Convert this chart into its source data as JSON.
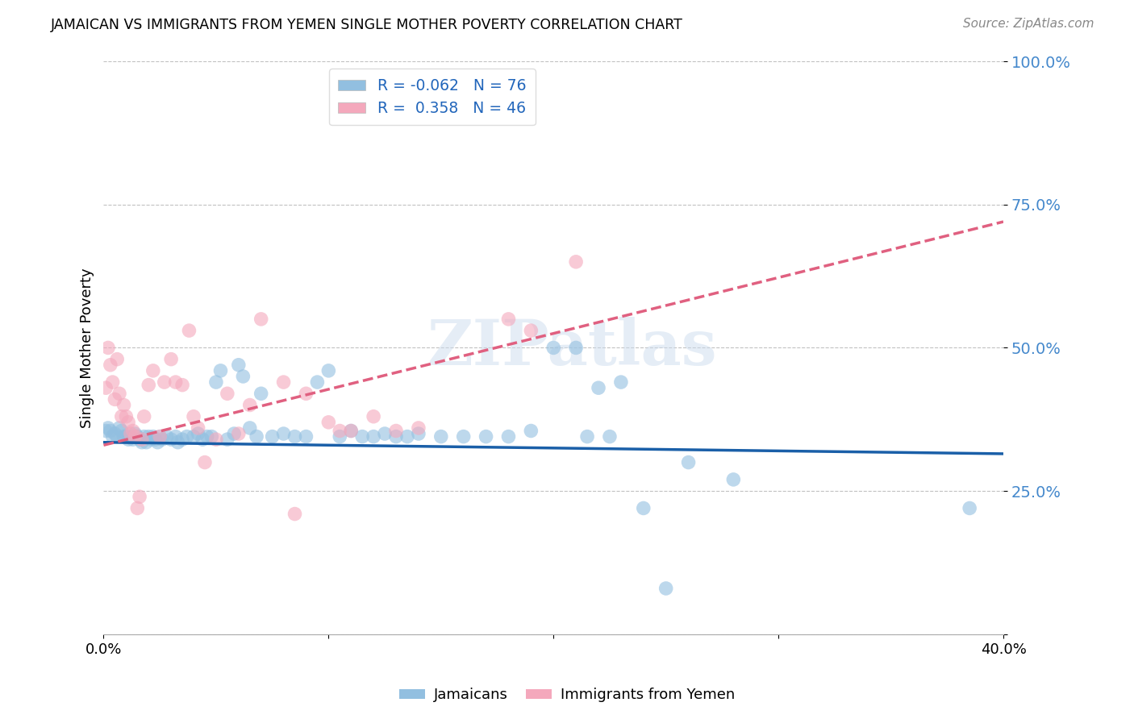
{
  "title": "JAMAICAN VS IMMIGRANTS FROM YEMEN SINGLE MOTHER POVERTY CORRELATION CHART",
  "source": "Source: ZipAtlas.com",
  "ylabel": "Single Mother Poverty",
  "yticks": [
    0.0,
    0.25,
    0.5,
    0.75,
    1.0
  ],
  "ytick_labels": [
    "",
    "25.0%",
    "50.0%",
    "75.0%",
    "100.0%"
  ],
  "xmin": 0.0,
  "xmax": 0.4,
  "ymin": 0.0,
  "ymax": 1.0,
  "watermark": "ZIPatlas",
  "jamaican_color": "#92bfe0",
  "yemen_color": "#f4a8bc",
  "jamaican_line_color": "#1a5fa8",
  "yemen_line_color": "#e06080",
  "jamaican_r": -0.062,
  "yemen_r": 0.358,
  "jamaican_n": 76,
  "yemen_n": 46,
  "jamaican_line": [
    0.0,
    0.335,
    0.4,
    0.315
  ],
  "yemen_line": [
    0.0,
    0.33,
    0.4,
    0.72
  ],
  "jamaican_points": [
    [
      0.001,
      0.355
    ],
    [
      0.002,
      0.36
    ],
    [
      0.003,
      0.355
    ],
    [
      0.004,
      0.345
    ],
    [
      0.005,
      0.35
    ],
    [
      0.006,
      0.345
    ],
    [
      0.007,
      0.36
    ],
    [
      0.008,
      0.355
    ],
    [
      0.009,
      0.345
    ],
    [
      0.01,
      0.345
    ],
    [
      0.011,
      0.34
    ],
    [
      0.012,
      0.345
    ],
    [
      0.013,
      0.34
    ],
    [
      0.014,
      0.35
    ],
    [
      0.015,
      0.345
    ],
    [
      0.016,
      0.34
    ],
    [
      0.017,
      0.335
    ],
    [
      0.018,
      0.345
    ],
    [
      0.019,
      0.335
    ],
    [
      0.02,
      0.345
    ],
    [
      0.021,
      0.34
    ],
    [
      0.022,
      0.345
    ],
    [
      0.023,
      0.34
    ],
    [
      0.024,
      0.335
    ],
    [
      0.025,
      0.345
    ],
    [
      0.026,
      0.34
    ],
    [
      0.028,
      0.345
    ],
    [
      0.03,
      0.34
    ],
    [
      0.032,
      0.345
    ],
    [
      0.033,
      0.335
    ],
    [
      0.035,
      0.34
    ],
    [
      0.037,
      0.345
    ],
    [
      0.04,
      0.345
    ],
    [
      0.042,
      0.35
    ],
    [
      0.044,
      0.34
    ],
    [
      0.046,
      0.345
    ],
    [
      0.048,
      0.345
    ],
    [
      0.05,
      0.44
    ],
    [
      0.052,
      0.46
    ],
    [
      0.055,
      0.34
    ],
    [
      0.058,
      0.35
    ],
    [
      0.06,
      0.47
    ],
    [
      0.062,
      0.45
    ],
    [
      0.065,
      0.36
    ],
    [
      0.068,
      0.345
    ],
    [
      0.07,
      0.42
    ],
    [
      0.075,
      0.345
    ],
    [
      0.08,
      0.35
    ],
    [
      0.085,
      0.345
    ],
    [
      0.09,
      0.345
    ],
    [
      0.095,
      0.44
    ],
    [
      0.1,
      0.46
    ],
    [
      0.105,
      0.345
    ],
    [
      0.11,
      0.355
    ],
    [
      0.115,
      0.345
    ],
    [
      0.12,
      0.345
    ],
    [
      0.125,
      0.35
    ],
    [
      0.13,
      0.345
    ],
    [
      0.135,
      0.345
    ],
    [
      0.14,
      0.35
    ],
    [
      0.15,
      0.345
    ],
    [
      0.16,
      0.345
    ],
    [
      0.17,
      0.345
    ],
    [
      0.18,
      0.345
    ],
    [
      0.19,
      0.355
    ],
    [
      0.2,
      0.5
    ],
    [
      0.21,
      0.5
    ],
    [
      0.215,
      0.345
    ],
    [
      0.22,
      0.43
    ],
    [
      0.225,
      0.345
    ],
    [
      0.23,
      0.44
    ],
    [
      0.24,
      0.22
    ],
    [
      0.25,
      0.08
    ],
    [
      0.26,
      0.3
    ],
    [
      0.28,
      0.27
    ],
    [
      0.385,
      0.22
    ]
  ],
  "yemen_points": [
    [
      0.001,
      0.43
    ],
    [
      0.002,
      0.5
    ],
    [
      0.003,
      0.47
    ],
    [
      0.004,
      0.44
    ],
    [
      0.005,
      0.41
    ],
    [
      0.006,
      0.48
    ],
    [
      0.007,
      0.42
    ],
    [
      0.008,
      0.38
    ],
    [
      0.009,
      0.4
    ],
    [
      0.01,
      0.38
    ],
    [
      0.011,
      0.37
    ],
    [
      0.012,
      0.35
    ],
    [
      0.013,
      0.355
    ],
    [
      0.014,
      0.345
    ],
    [
      0.015,
      0.22
    ],
    [
      0.016,
      0.24
    ],
    [
      0.017,
      0.34
    ],
    [
      0.018,
      0.38
    ],
    [
      0.02,
      0.435
    ],
    [
      0.022,
      0.46
    ],
    [
      0.025,
      0.345
    ],
    [
      0.027,
      0.44
    ],
    [
      0.03,
      0.48
    ],
    [
      0.032,
      0.44
    ],
    [
      0.035,
      0.435
    ],
    [
      0.038,
      0.53
    ],
    [
      0.04,
      0.38
    ],
    [
      0.042,
      0.36
    ],
    [
      0.045,
      0.3
    ],
    [
      0.05,
      0.34
    ],
    [
      0.055,
      0.42
    ],
    [
      0.06,
      0.35
    ],
    [
      0.065,
      0.4
    ],
    [
      0.07,
      0.55
    ],
    [
      0.08,
      0.44
    ],
    [
      0.085,
      0.21
    ],
    [
      0.09,
      0.42
    ],
    [
      0.1,
      0.37
    ],
    [
      0.105,
      0.355
    ],
    [
      0.11,
      0.355
    ],
    [
      0.12,
      0.38
    ],
    [
      0.13,
      0.355
    ],
    [
      0.14,
      0.36
    ],
    [
      0.18,
      0.55
    ],
    [
      0.19,
      0.53
    ],
    [
      0.21,
      0.65
    ]
  ]
}
